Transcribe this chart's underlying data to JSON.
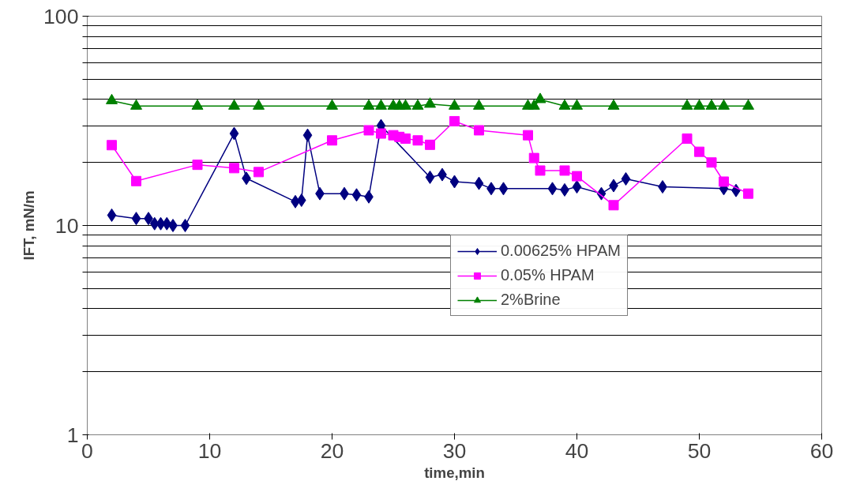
{
  "chart_data": {
    "type": "line",
    "xlabel": "time,min",
    "ylabel": "IFT, mN/m",
    "log": "y",
    "xlim": [
      0,
      60
    ],
    "xticks": [
      0,
      10,
      20,
      30,
      40,
      50,
      60
    ],
    "ylim": [
      1,
      100
    ],
    "yticks": [
      1,
      {
        "value": 2,
        "label": null
      },
      {
        "value": 3,
        "label": null
      },
      {
        "value": 4,
        "label": null
      },
      {
        "value": 5,
        "label": null
      },
      {
        "value": 6,
        "label": null
      },
      {
        "value": 7,
        "label": null
      },
      {
        "value": 8,
        "label": null
      },
      {
        "value": 9,
        "label": null
      },
      10,
      {
        "value": 20,
        "label": null
      },
      {
        "value": 30,
        "label": null
      },
      {
        "value": 40,
        "label": null
      },
      {
        "value": 50,
        "label": null
      },
      {
        "value": 60,
        "label": null
      },
      {
        "value": 70,
        "label": null
      },
      {
        "value": 80,
        "label": null
      },
      {
        "value": 90,
        "label": null
      },
      100
    ],
    "grid": "y",
    "legend": "bottom right",
    "series": [
      {
        "name": "0.00625% HPAM",
        "color": "#000080",
        "marker": "diamond",
        "x": [
          2,
          4,
          5,
          5.5,
          6,
          6.5,
          7,
          8,
          12,
          13,
          17,
          17.5,
          18,
          19,
          21,
          22,
          23,
          24,
          28,
          29,
          30,
          32,
          33,
          34,
          38,
          39,
          40,
          42,
          43,
          44,
          47,
          52,
          53
        ],
        "values": [
          11.2,
          10.8,
          10.8,
          10.2,
          10.2,
          10.2,
          10,
          10,
          27.5,
          16.8,
          13,
          13.2,
          27,
          14.2,
          14.2,
          14,
          13.7,
          30,
          17,
          17.5,
          16.2,
          15.9,
          15,
          15,
          15,
          14.8,
          15.3,
          14.2,
          15.5,
          16.7,
          15.3,
          15,
          14.7
        ]
      },
      {
        "name": "0.05% HPAM",
        "color": "#ff00ff",
        "marker": "square",
        "x": [
          2,
          4,
          9,
          12,
          14,
          20,
          23,
          24,
          25,
          25.5,
          26,
          27,
          28,
          30,
          32,
          36,
          36.5,
          37,
          39,
          40,
          43,
          49,
          50,
          51,
          52,
          54
        ],
        "values": [
          24.2,
          16.3,
          19.5,
          18.8,
          18,
          25.5,
          28.5,
          27.5,
          27,
          26.5,
          26,
          25.5,
          24.3,
          31.5,
          28.5,
          27,
          21,
          18.3,
          18.3,
          17.2,
          12.5,
          26,
          22.5,
          20,
          16.2,
          14.2
        ]
      },
      {
        "name": "2%Brine",
        "color": "#008000",
        "marker": "triangle",
        "x": [
          2,
          4,
          9,
          12,
          14,
          20,
          23,
          24,
          25,
          25.5,
          26,
          27,
          28,
          30,
          32,
          36,
          36.5,
          37,
          39,
          40,
          43,
          49,
          50,
          51,
          52,
          54
        ],
        "values": [
          39.5,
          37.2,
          37.2,
          37.2,
          37.2,
          37.2,
          37.2,
          37.2,
          37.2,
          37.2,
          37.2,
          37.2,
          38,
          37.2,
          37.2,
          37.2,
          37.2,
          40,
          37.2,
          37.2,
          37.2,
          37.2,
          37.2,
          37.2,
          37.2,
          37.2
        ]
      }
    ]
  }
}
